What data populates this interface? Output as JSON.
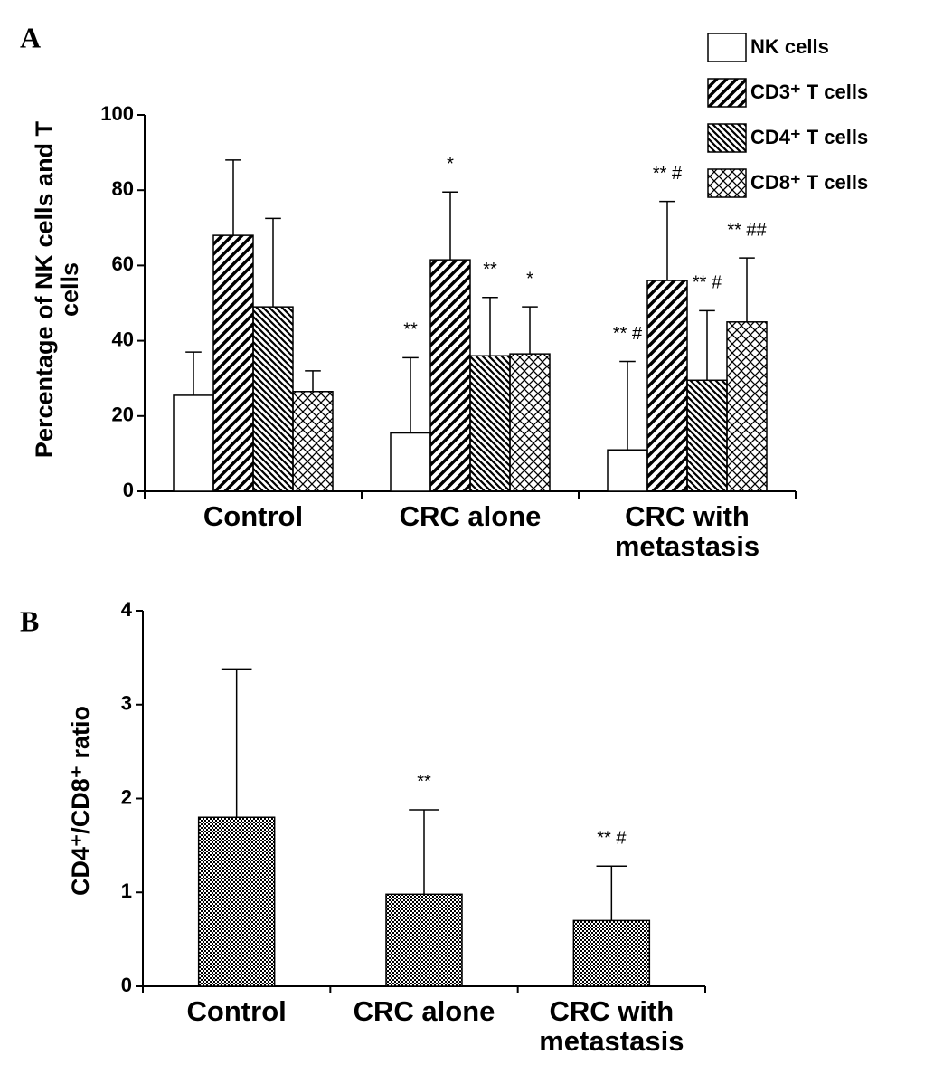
{
  "chart_data": [
    {
      "type": "bar",
      "panel_label": "A",
      "ylabel": "Percentage of NK cells and T cells",
      "categories": [
        "Control",
        "CRC alone",
        "CRC with metastasis"
      ],
      "series": [
        {
          "name": "NK cells",
          "pattern": "none",
          "values": [
            25.5,
            15.5,
            11
          ],
          "errors": [
            11.5,
            20,
            23.5
          ],
          "annotations": [
            null,
            "**",
            "** #"
          ]
        },
        {
          "name": "CD3⁺ T cells",
          "pattern": "diagonal",
          "values": [
            68,
            61.5,
            56
          ],
          "errors": [
            20,
            18,
            21
          ],
          "annotations": [
            null,
            "*",
            "** #"
          ]
        },
        {
          "name": "CD4⁺ T cells",
          "pattern": "back-diagonal",
          "values": [
            49,
            36,
            29.5
          ],
          "errors": [
            23.5,
            15.5,
            18.5
          ],
          "annotations": [
            null,
            "**",
            "** #"
          ]
        },
        {
          "name": "CD8⁺ T cells",
          "pattern": "crosshatch",
          "values": [
            26.5,
            36.5,
            45
          ],
          "errors": [
            5.5,
            12.5,
            17
          ],
          "annotations": [
            null,
            "*",
            "** ##"
          ]
        }
      ],
      "ylim": [
        0,
        100
      ],
      "yticks": [
        0,
        20,
        40,
        60,
        80,
        100
      ],
      "legend": "upper right"
    },
    {
      "type": "bar",
      "panel_label": "B",
      "ylabel": "CD4⁺/CD8⁺ ratio",
      "categories": [
        "Control",
        "CRC alone",
        "CRC with metastasis"
      ],
      "values": [
        1.8,
        0.98,
        0.7
      ],
      "errors": [
        1.58,
        0.9,
        0.58
      ],
      "annotations": [
        null,
        "**",
        "** #"
      ],
      "pattern": "checker",
      "ylim": [
        0,
        4
      ],
      "yticks": [
        0,
        1,
        2,
        3,
        4
      ]
    }
  ]
}
